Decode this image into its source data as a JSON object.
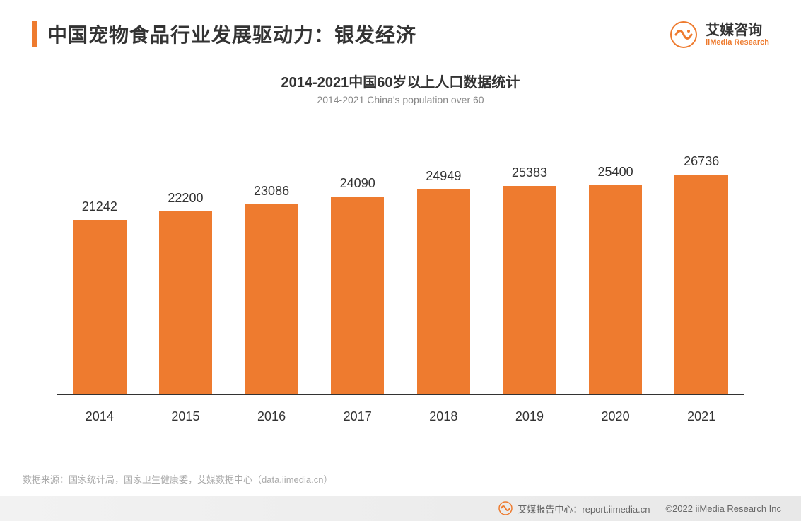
{
  "header": {
    "title": "中国宠物食品行业发展驱动力：银发经济",
    "accent_color": "#ee7b2f",
    "title_color": "#333333",
    "title_fontsize": 28
  },
  "logo": {
    "brand_cn": "艾媒咨询",
    "brand_en": "iiMedia Research",
    "icon_color": "#ee7b2f",
    "text_color": "#333333"
  },
  "chart": {
    "type": "bar",
    "title_cn": "2014-2021中国60岁以上人口数据统计",
    "title_en": "2014-2021 China's population over 60",
    "title_cn_fontsize": 20,
    "title_en_fontsize": 14,
    "title_en_color": "#888888",
    "categories": [
      "2014",
      "2015",
      "2016",
      "2017",
      "2018",
      "2019",
      "2020",
      "2021"
    ],
    "values": [
      21242,
      22200,
      23086,
      24090,
      24949,
      25383,
      25400,
      26736
    ],
    "bar_color": "#ee7b2f",
    "value_label_color": "#333333",
    "value_label_fontsize": 18,
    "xlabel_color": "#333333",
    "xlabel_fontsize": 18,
    "axis_color": "#333333",
    "ymax": 30000,
    "ymin": 0,
    "bar_width_ratio": 0.62,
    "background_color": "#ffffff"
  },
  "footer": {
    "source": "数据来源：国家统计局，国家卫生健康委，艾媒数据中心（data.iimedia.cn）",
    "source_color": "#aaaaaa",
    "source_fontsize": 13,
    "report_center": "艾媒报告中心：report.iimedia.cn",
    "copyright": "©2022  iiMedia Research  Inc",
    "bar_bg": "#ececec",
    "text_color": "#666666"
  }
}
